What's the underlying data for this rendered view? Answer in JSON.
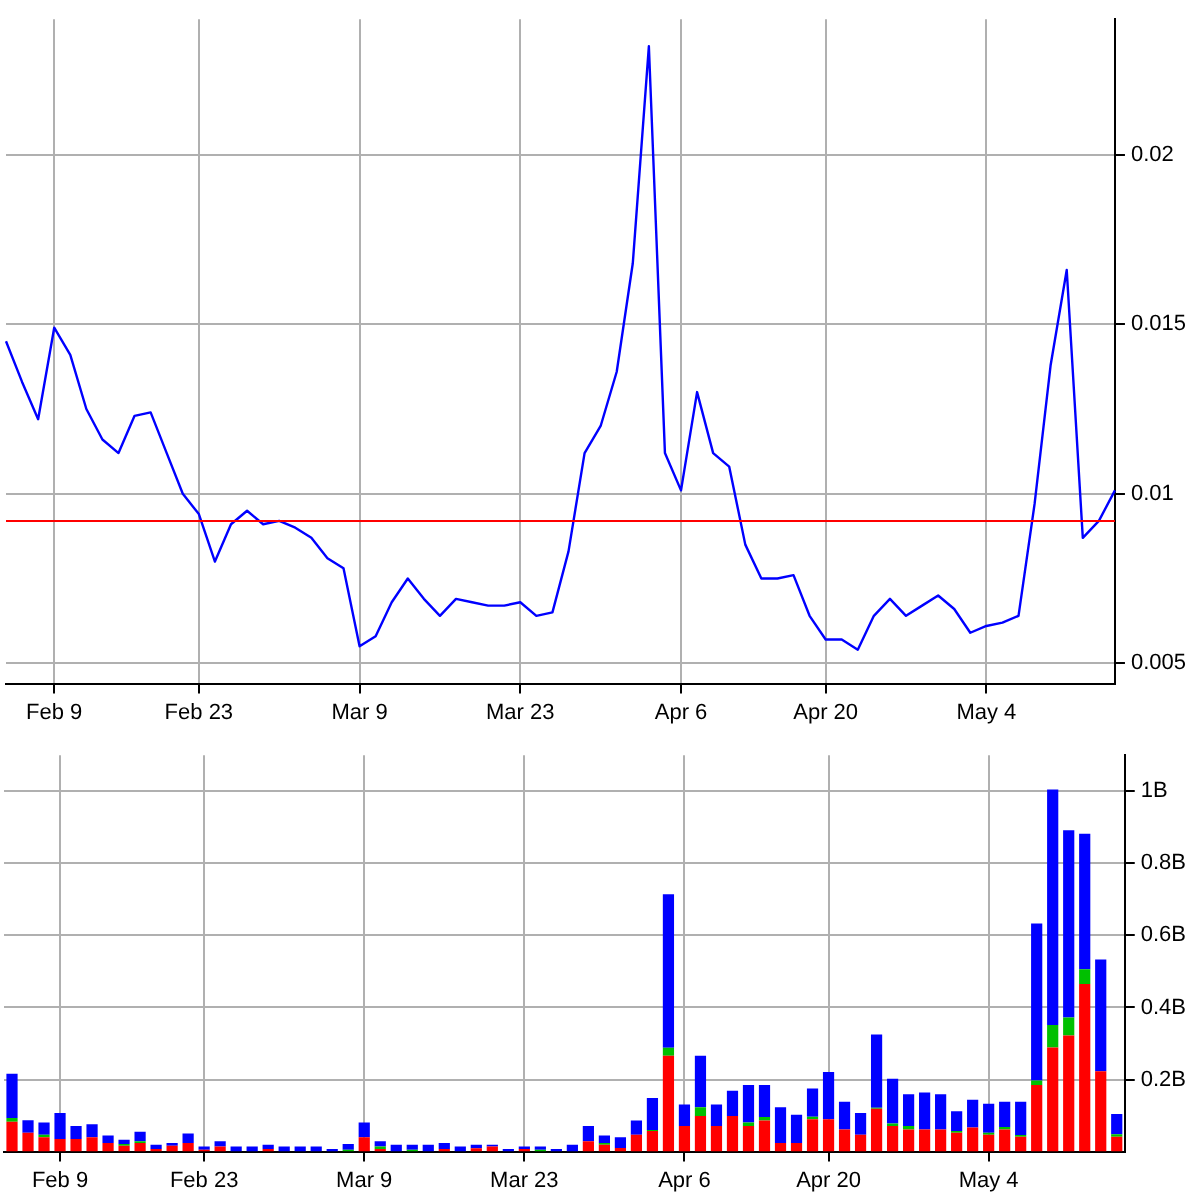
{
  "chart_data": [
    {
      "type": "line",
      "categories": [
        null,
        null,
        null,
        "Feb 9",
        null,
        null,
        null,
        null,
        null,
        null,
        null,
        null,
        "Feb 23",
        null,
        null,
        null,
        null,
        null,
        null,
        null,
        null,
        null,
        "Mar 9",
        null,
        null,
        null,
        null,
        null,
        null,
        null,
        null,
        null,
        "Mar 23",
        null,
        null,
        null,
        null,
        null,
        null,
        null,
        null,
        null,
        "Apr 6",
        null,
        null,
        null,
        null,
        null,
        null,
        null,
        null,
        "Apr 20",
        null,
        null,
        null,
        null,
        null,
        null,
        null,
        null,
        null,
        "May 4",
        null,
        null,
        null,
        null,
        null,
        null,
        null,
        null
      ],
      "values": [
        0.0145,
        0.0133,
        0.0122,
        0.0149,
        0.0141,
        0.0125,
        0.0116,
        0.0112,
        0.0123,
        0.0124,
        0.0112,
        0.01,
        0.0094,
        0.008,
        0.0091,
        0.0095,
        0.0091,
        0.0092,
        0.009,
        0.0087,
        0.0081,
        0.0078,
        0.0055,
        0.0058,
        0.0068,
        0.0075,
        0.0069,
        0.0064,
        0.0069,
        0.0068,
        0.0067,
        0.0067,
        0.0068,
        0.0064,
        0.0065,
        0.0083,
        0.0112,
        0.012,
        0.0136,
        0.0168,
        0.0232,
        0.0112,
        0.0101,
        0.013,
        0.0112,
        0.0108,
        0.0085,
        0.0075,
        0.0075,
        0.0076,
        0.0064,
        0.0057,
        0.0057,
        0.0054,
        0.0064,
        0.0069,
        0.0064,
        0.0067,
        0.007,
        0.0066,
        0.0059,
        0.0061,
        0.0062,
        0.0064,
        0.0097,
        0.0138,
        0.0166,
        0.0087,
        0.0092,
        0.0101
      ],
      "color": "#0000ff",
      "ylim": [
        0.0044,
        0.024
      ],
      "yticks": [
        0.005,
        0.01,
        0.015,
        0.02
      ],
      "ref_lines": [
        {
          "axis": "y",
          "value": 0.0092,
          "color": "#ff0000"
        }
      ],
      "grid": true,
      "legend": false
    },
    {
      "type": "bar",
      "stacked": true,
      "categories": [
        null,
        null,
        null,
        "Feb 9",
        null,
        null,
        null,
        null,
        null,
        null,
        null,
        null,
        "Feb 23",
        null,
        null,
        null,
        null,
        null,
        null,
        null,
        null,
        null,
        "Mar 9",
        null,
        null,
        null,
        null,
        null,
        null,
        null,
        null,
        null,
        "Mar 23",
        null,
        null,
        null,
        null,
        null,
        null,
        null,
        null,
        null,
        "Apr 6",
        null,
        null,
        null,
        null,
        null,
        null,
        null,
        null,
        "Apr 20",
        null,
        null,
        null,
        null,
        null,
        null,
        null,
        null,
        null,
        "May 4",
        null,
        null,
        null,
        null,
        null,
        null,
        null,
        null
      ],
      "series": [
        {
          "color": "#ff0000",
          "values": [
            0.083,
            0.052,
            0.04,
            0.035,
            0.035,
            0.04,
            0.024,
            0.016,
            0.024,
            0.007,
            0.016,
            0.024,
            0.005,
            0.014,
            0,
            0,
            0.007,
            0,
            0,
            0,
            0,
            0,
            0.04,
            0.007,
            0,
            0,
            0,
            0.007,
            0,
            0.009,
            0.014,
            0,
            0.007,
            0,
            0,
            0,
            0.029,
            0.019,
            0.01,
            0.047,
            0.057,
            0.266,
            0.071,
            0.099,
            0.071,
            0.099,
            0.071,
            0.086,
            0.024,
            0.024,
            0.09,
            0.09,
            0.061,
            0.047,
            0.119,
            0.071,
            0.061,
            0.061,
            0.061,
            0.052,
            0.067,
            0.047,
            0.061,
            0.041,
            0.185,
            0.289,
            0.322,
            0.465,
            0.223,
            0.041
          ]
        },
        {
          "color": "#00c000",
          "values": [
            0.01,
            0,
            0.007,
            0,
            0,
            0,
            0,
            0.005,
            0.005,
            0,
            0,
            0,
            0,
            0,
            0,
            0,
            0,
            0,
            0,
            0,
            0,
            0.005,
            0,
            0.007,
            0,
            0.005,
            0,
            0,
            0,
            0,
            0,
            0,
            0,
            0.005,
            0,
            0,
            0,
            0.005,
            0,
            0,
            0.003,
            0.022,
            0,
            0.024,
            0,
            0,
            0.01,
            0.01,
            0,
            0,
            0.007,
            0,
            0,
            0,
            0.003,
            0.007,
            0.01,
            0,
            0,
            0.005,
            0,
            0.005,
            0.007,
            0.005,
            0.012,
            0.062,
            0.05,
            0.041,
            0,
            0.007
          ]
        },
        {
          "color": "#0000ff",
          "values": [
            0.123,
            0.035,
            0.034,
            0.072,
            0.036,
            0.036,
            0.021,
            0.012,
            0.026,
            0.012,
            0.008,
            0.026,
            0.009,
            0.015,
            0.014,
            0.014,
            0.012,
            0.014,
            0.014,
            0.014,
            0.007,
            0.016,
            0.041,
            0.015,
            0.019,
            0.014,
            0.019,
            0.017,
            0.014,
            0.01,
            0.005,
            0.007,
            0.007,
            0.009,
            0.007,
            0.019,
            0.042,
            0.021,
            0.03,
            0.039,
            0.089,
            0.426,
            0.06,
            0.143,
            0.06,
            0.07,
            0.104,
            0.089,
            0.099,
            0.078,
            0.078,
            0.131,
            0.077,
            0.06,
            0.203,
            0.124,
            0.088,
            0.103,
            0.098,
            0.055,
            0.077,
            0.081,
            0.07,
            0.092,
            0.436,
            0.654,
            0.52,
            0.376,
            0.31,
            0.056
          ]
        }
      ],
      "ylim": [
        0,
        1.1
      ],
      "yticks": [
        {
          "value": 0.2,
          "label": "0.2B"
        },
        {
          "value": 0.4,
          "label": "0.4B"
        },
        {
          "value": 0.6,
          "label": "0.6B"
        },
        {
          "value": 0.8,
          "label": "0.8B"
        },
        {
          "value": 1,
          "label": "1B"
        }
      ],
      "grid": true,
      "legend": false
    }
  ]
}
